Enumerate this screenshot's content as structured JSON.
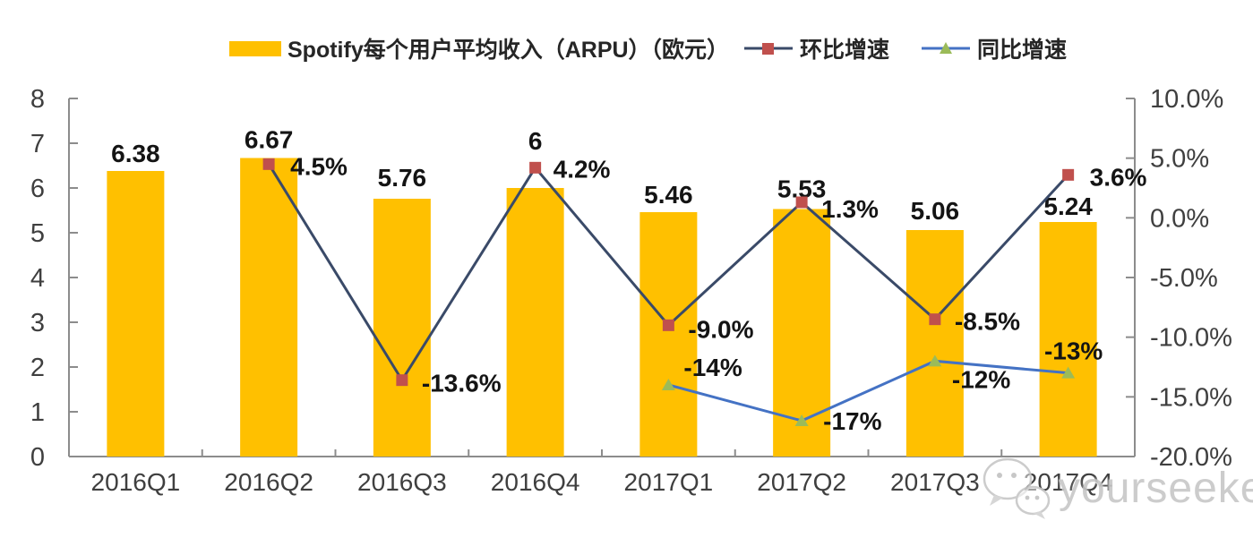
{
  "legend": {
    "bar_label": "Spotify每个用户平均收入（ARPU）（欧元）",
    "qoq_label": "环比增速",
    "yoy_label": "同比增速"
  },
  "watermark": {
    "text": "yourseeker",
    "icon": "wechat-icon"
  },
  "colors": {
    "bar": "#FFC000",
    "qoq_line": "#3A4A68",
    "qoq_marker": "#C0504D",
    "yoy_line": "#4472C4",
    "yoy_marker": "#9BBB59",
    "axis": "#8C8C8C",
    "tick_text": "#3F3F3F",
    "data_label": "#141414",
    "watermark_gray": "#C7C7C7"
  },
  "chart_data": {
    "type": "bar",
    "subtype": "combo-bar-line",
    "title": "Spotify每个用户平均收入（ARPU）（欧元）",
    "categories": [
      "2016Q1",
      "2016Q2",
      "2016Q3",
      "2016Q4",
      "2017Q1",
      "2017Q2",
      "2017Q3",
      "2017Q4"
    ],
    "series": [
      {
        "key": "arpu-bar",
        "name": "Spotify每个用户平均收入（ARPU）（欧元）",
        "type": "bar",
        "axis": "left",
        "values": [
          6.38,
          6.67,
          5.76,
          6,
          5.46,
          5.53,
          5.06,
          5.24
        ],
        "labels": [
          "6.38",
          "6.67",
          "5.76",
          "6",
          "5.46",
          "5.53",
          "5.06",
          "5.24"
        ]
      },
      {
        "key": "qoq-line",
        "name": "环比增速",
        "type": "line",
        "marker": "square",
        "axis": "right",
        "values": [
          null,
          4.5,
          -13.6,
          4.2,
          -9.0,
          1.3,
          -8.5,
          3.6
        ],
        "labels": [
          null,
          "4.5%",
          "-13.6%",
          "4.2%",
          "-9.0%",
          "1.3%",
          "-8.5%",
          "3.6%"
        ]
      },
      {
        "key": "yoy-line",
        "name": "同比增速",
        "type": "line",
        "marker": "triangle",
        "axis": "right",
        "values": [
          null,
          null,
          null,
          null,
          -14,
          -17,
          -12,
          -13
        ],
        "labels": [
          null,
          null,
          null,
          null,
          "-14%",
          "-17%",
          "-12%",
          "-13%"
        ]
      }
    ],
    "left_axis": {
      "min": 0,
      "max": 8,
      "tick_values": [
        0,
        1,
        2,
        3,
        4,
        5,
        6,
        7,
        8
      ],
      "tick_labels": [
        "0",
        "1",
        "2",
        "3",
        "4",
        "5",
        "6",
        "7",
        "8"
      ]
    },
    "right_axis": {
      "min": -20,
      "max": 10,
      "tick_values": [
        10,
        5,
        0,
        -5,
        -10,
        -15,
        -20
      ],
      "tick_labels": [
        "10.0%",
        "5.0%",
        "0.0%",
        "-5.0%",
        "-10.0%",
        "-15.0%",
        "-20.0%"
      ]
    },
    "legend_position": "top",
    "grid": false
  }
}
